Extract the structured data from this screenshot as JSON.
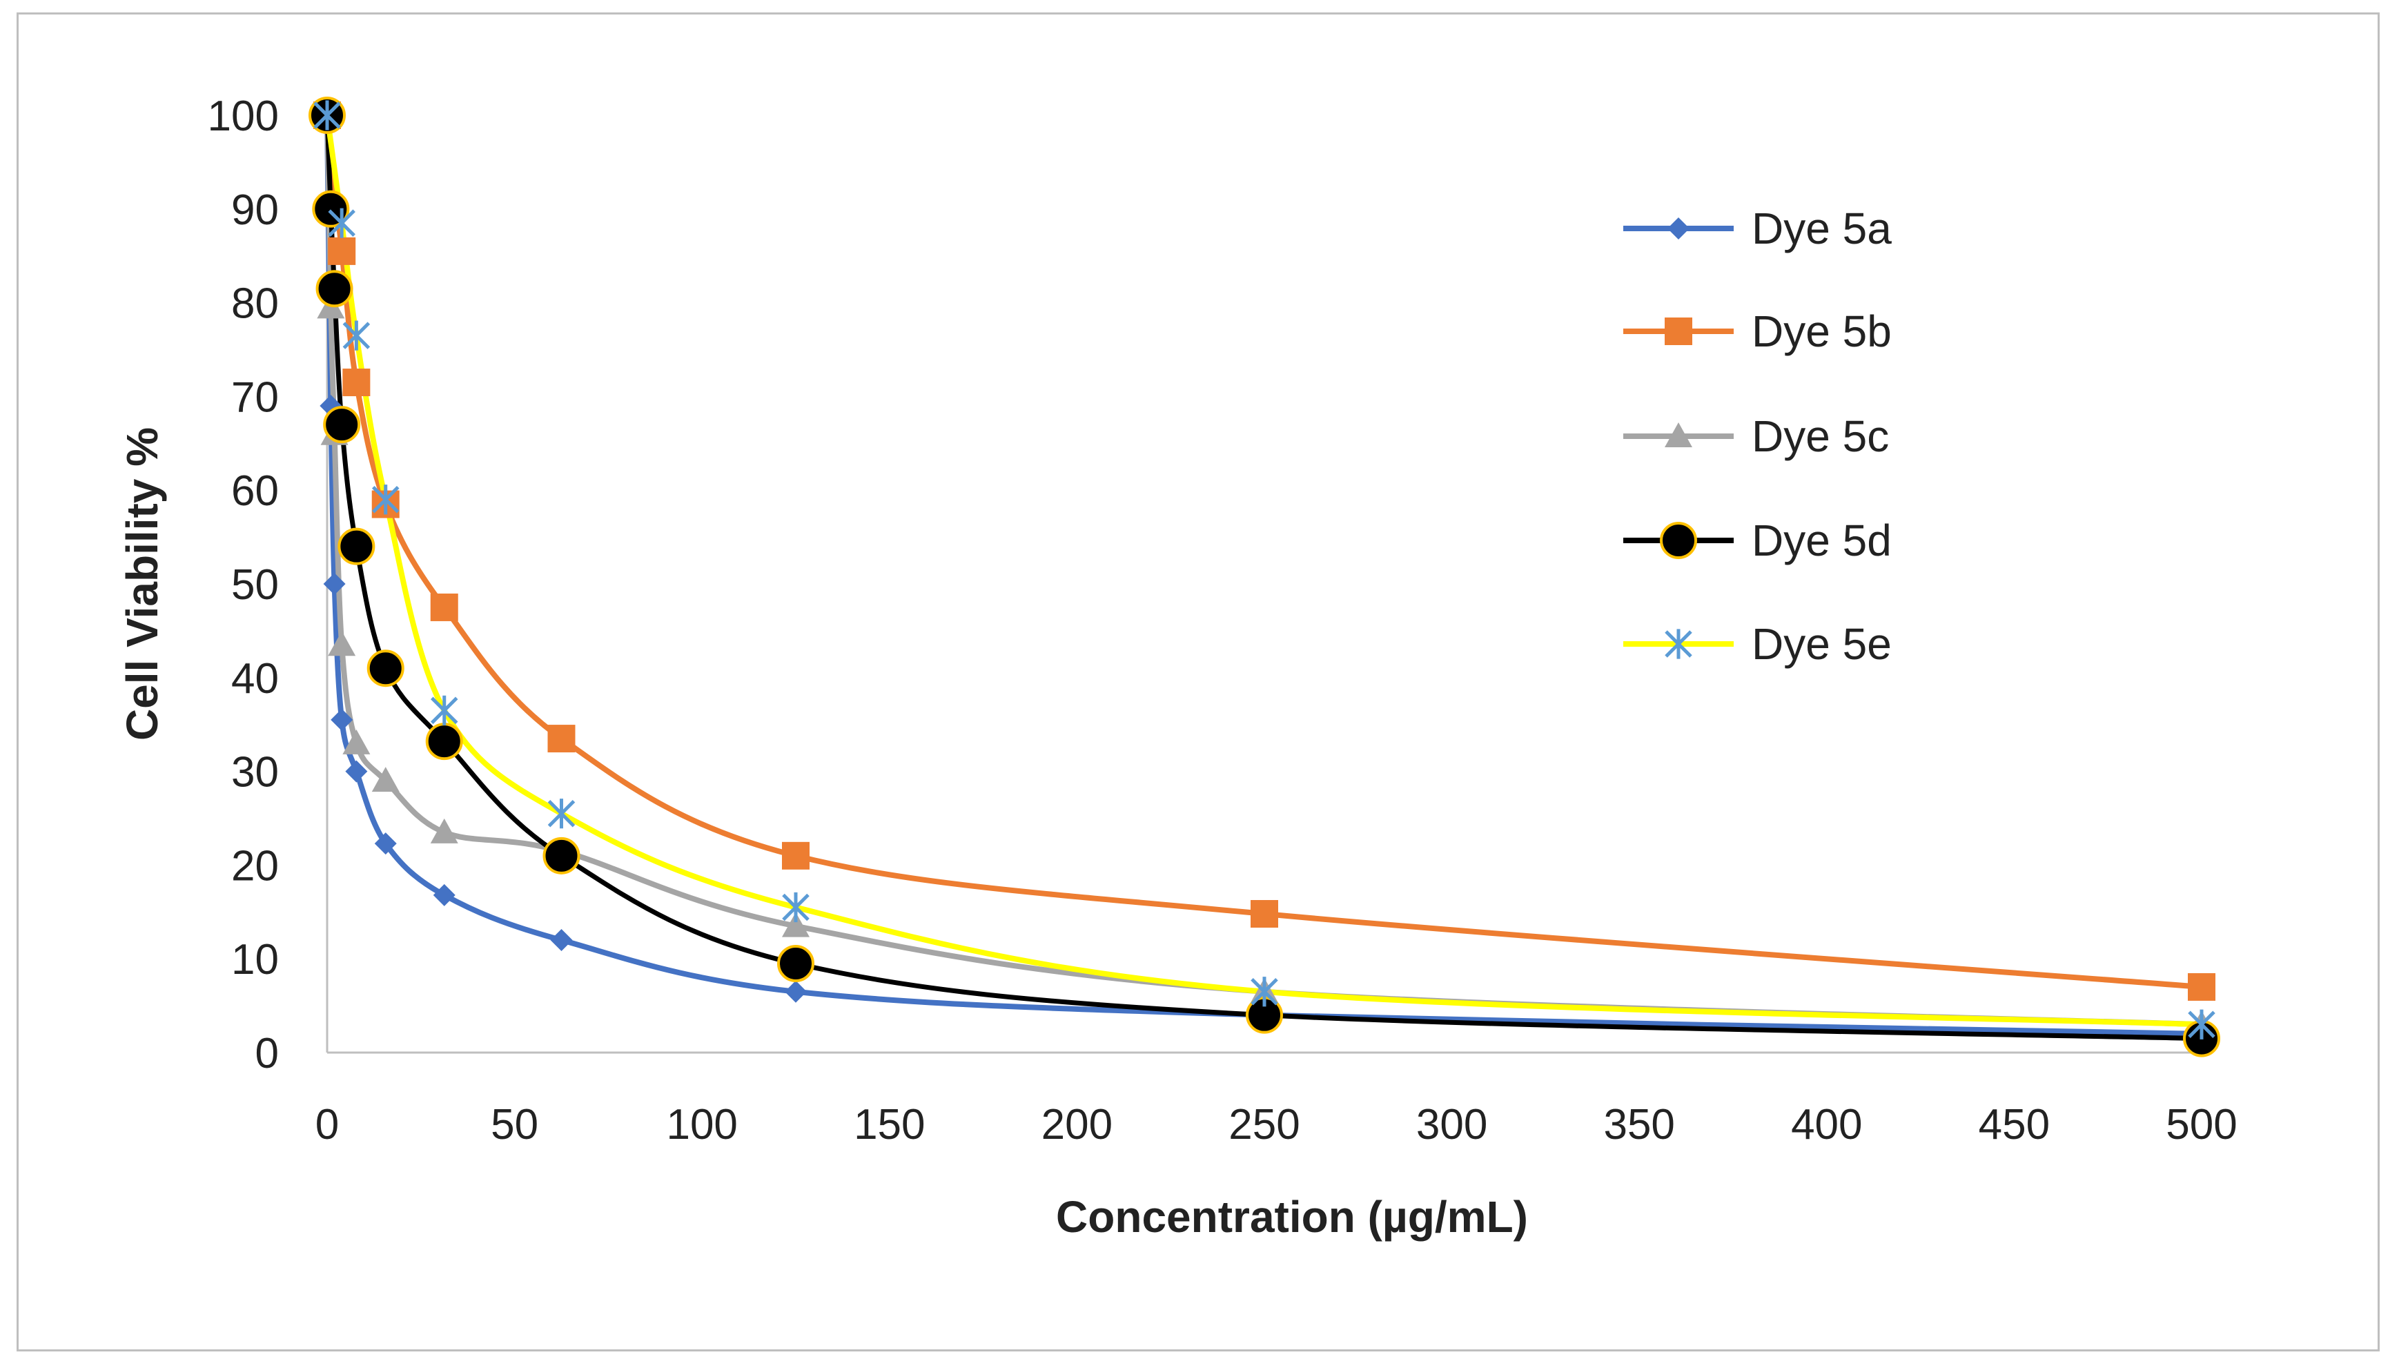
{
  "chart_data": {
    "type": "line",
    "title": "",
    "xlabel": "Concentration (µg/mL)",
    "ylabel": "Cell  Viability %",
    "xlim": [
      0,
      500
    ],
    "ylim": [
      0,
      100
    ],
    "xticks": [
      0,
      50,
      100,
      150,
      200,
      250,
      300,
      350,
      400,
      450,
      500
    ],
    "yticks": [
      0,
      10,
      20,
      30,
      40,
      50,
      60,
      70,
      80,
      90,
      100
    ],
    "grid": false,
    "legend_position": "right",
    "series": [
      {
        "name": "Dye 5a",
        "color": "#4472C4",
        "marker": "diamond",
        "x": [
          0,
          0.98,
          1.95,
          3.9,
          7.8,
          15.6,
          31.25,
          62.5,
          125,
          250,
          500
        ],
        "y": [
          100,
          69,
          50,
          35.5,
          30,
          22.3,
          16.8,
          12,
          6.5,
          4,
          2
        ]
      },
      {
        "name": "Dye 5b",
        "color": "#ED7D31",
        "marker": "square",
        "x": [
          0,
          3.9,
          7.8,
          15.6,
          31.25,
          62.5,
          125,
          250,
          500
        ],
        "y": [
          100,
          85.5,
          71.5,
          58.5,
          47.5,
          33.5,
          21,
          14.8,
          7
        ]
      },
      {
        "name": "Dye 5c",
        "color": "#A5A5A5",
        "marker": "triangle",
        "x": [
          0,
          0.98,
          1.95,
          3.9,
          7.8,
          15.6,
          31.25,
          62.5,
          125,
          250,
          500
        ],
        "y": [
          100,
          79.5,
          66,
          43.5,
          33,
          29,
          23.5,
          21.5,
          13.5,
          6.5,
          3
        ]
      },
      {
        "name": "Dye 5d",
        "color": "#000000",
        "marker": "circle",
        "x": [
          0,
          0.98,
          1.95,
          3.9,
          7.8,
          15.6,
          31.25,
          62.5,
          125,
          250,
          500
        ],
        "y": [
          100,
          90,
          81.5,
          67,
          54,
          41,
          33.2,
          21,
          9.5,
          4,
          1.5
        ]
      },
      {
        "name": "Dye 5e",
        "color": "#FFFF00",
        "marker": "asterisk",
        "marker_color": "#5B9BD5",
        "x": [
          0,
          3.9,
          7.8,
          15.6,
          31.25,
          62.5,
          125,
          250,
          500
        ],
        "y": [
          100,
          88.5,
          76.5,
          59,
          36.5,
          25.5,
          15.5,
          6.5,
          3
        ]
      }
    ]
  }
}
